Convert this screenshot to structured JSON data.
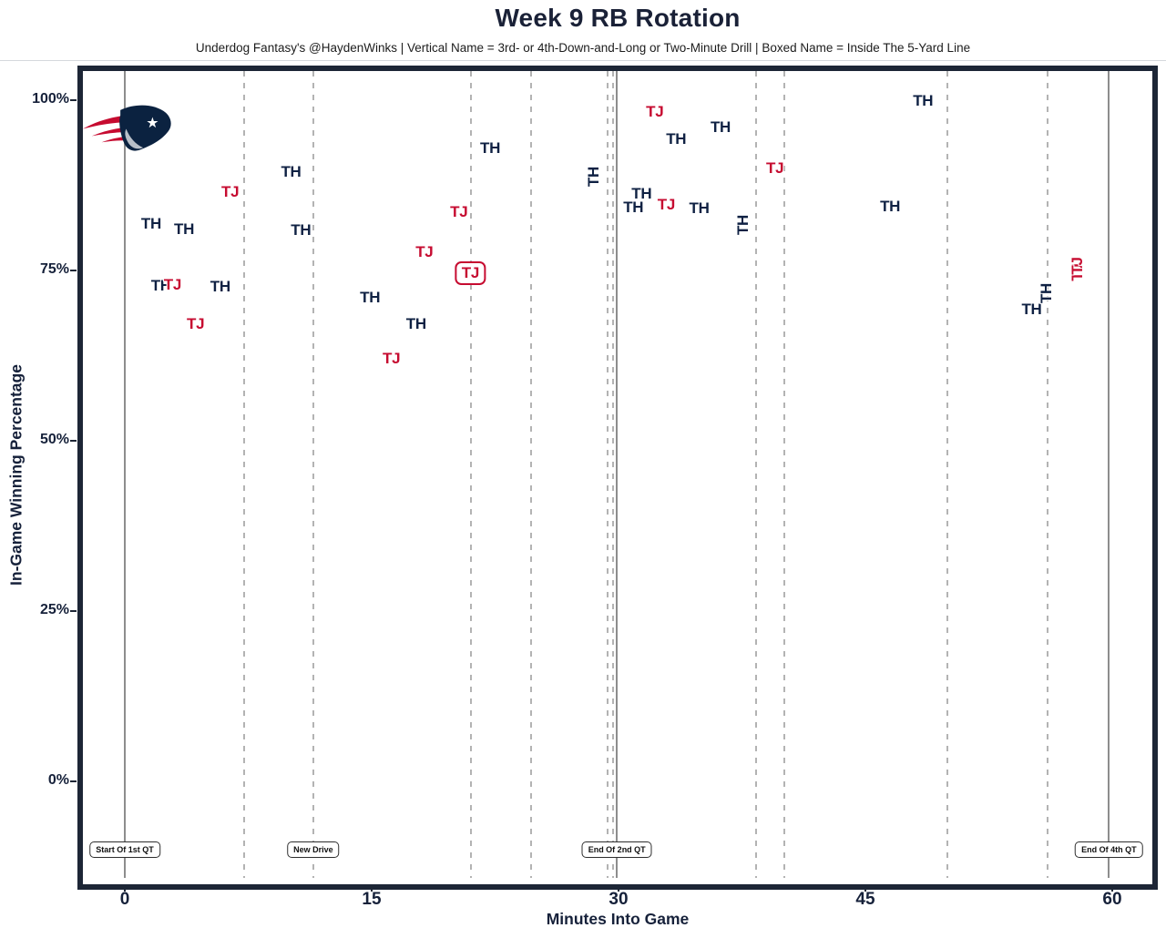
{
  "header": {
    "title": "Week 9 RB Rotation",
    "subtitle": "Underdog Fantasy's @HaydenWinks | Vertical Name = 3rd- or 4th-Down-and-Long or Two-Minute Drill | Boxed Name = Inside The 5-Yard Line"
  },
  "colors": {
    "navy": "#0f2143",
    "red": "#c60b30",
    "axis_text": "#16213a",
    "solid_event_line": "#8d8d8d",
    "dashed_event_line": "#b3b3b3",
    "plot_border": "#1d2636"
  },
  "logo": {
    "icon": "patriots-flying-elvis-logo"
  },
  "chart_data": {
    "type": "scatter",
    "title": "Week 9 RB Rotation",
    "subtitle": "Underdog Fantasy's @HaydenWinks | Vertical Name = 3rd- or 4th-Down-and-Long or Two-Minute Drill | Boxed Name = Inside The 5-Yard Line",
    "xlabel": "Minutes Into Game",
    "ylabel": "In-Game Winning Percentage",
    "xlim": [
      -2.6,
      62.4
    ],
    "ylim": [
      -14.2,
      104.3
    ],
    "grid": "vertical-event-lines-only",
    "legend_position": "none",
    "x_ticks": [
      {
        "value": 0,
        "label": "0"
      },
      {
        "value": 15,
        "label": "15"
      },
      {
        "value": 30,
        "label": "30"
      },
      {
        "value": 45,
        "label": "45"
      },
      {
        "value": 60,
        "label": "60"
      }
    ],
    "y_ticks": [
      {
        "value": 0,
        "label": "0%"
      },
      {
        "value": 25,
        "label": "25%"
      },
      {
        "value": 50,
        "label": "50%"
      },
      {
        "value": 75,
        "label": "75%"
      },
      {
        "value": 100,
        "label": "100%"
      }
    ],
    "series_legend": [
      {
        "key": "TH",
        "color": "#0f2143"
      },
      {
        "key": "TJ",
        "color": "#c60b30"
      }
    ],
    "points": [
      {
        "player": "TH",
        "minute": 1.6,
        "win_pct": 81.8,
        "vertical": false,
        "boxed": false
      },
      {
        "player": "TH",
        "minute": 3.6,
        "win_pct": 81.0,
        "vertical": false,
        "boxed": false
      },
      {
        "player": "TH",
        "minute": 2.2,
        "win_pct": 72.7,
        "vertical": false,
        "boxed": false
      },
      {
        "player": "TJ",
        "minute": 2.9,
        "win_pct": 72.9,
        "vertical": false,
        "boxed": false
      },
      {
        "player": "TJ",
        "minute": 4.3,
        "win_pct": 67.1,
        "vertical": false,
        "boxed": false
      },
      {
        "player": "TH",
        "minute": 5.8,
        "win_pct": 72.6,
        "vertical": false,
        "boxed": false
      },
      {
        "player": "TJ",
        "minute": 6.4,
        "win_pct": 86.5,
        "vertical": false,
        "boxed": false
      },
      {
        "player": "TH",
        "minute": 10.1,
        "win_pct": 89.4,
        "vertical": false,
        "boxed": false
      },
      {
        "player": "TH",
        "minute": 10.7,
        "win_pct": 80.9,
        "vertical": false,
        "boxed": false
      },
      {
        "player": "TH",
        "minute": 14.9,
        "win_pct": 71.0,
        "vertical": false,
        "boxed": false
      },
      {
        "player": "TJ",
        "minute": 16.2,
        "win_pct": 62.0,
        "vertical": false,
        "boxed": false
      },
      {
        "player": "TH",
        "minute": 17.7,
        "win_pct": 67.1,
        "vertical": false,
        "boxed": false
      },
      {
        "player": "TJ",
        "minute": 18.2,
        "win_pct": 77.7,
        "vertical": false,
        "boxed": false
      },
      {
        "player": "TJ",
        "minute": 20.3,
        "win_pct": 83.6,
        "vertical": false,
        "boxed": false
      },
      {
        "player": "TJ",
        "minute": 21.0,
        "win_pct": 74.6,
        "vertical": false,
        "boxed": true
      },
      {
        "player": "TH",
        "minute": 22.2,
        "win_pct": 92.9,
        "vertical": false,
        "boxed": false
      },
      {
        "player": "TH",
        "minute": 28.5,
        "win_pct": 88.8,
        "vertical": true,
        "boxed": false
      },
      {
        "player": "TH",
        "minute": 30.9,
        "win_pct": 84.2,
        "vertical": false,
        "boxed": false
      },
      {
        "player": "TH",
        "minute": 31.4,
        "win_pct": 86.2,
        "vertical": false,
        "boxed": false
      },
      {
        "player": "TJ",
        "minute": 32.2,
        "win_pct": 98.3,
        "vertical": false,
        "boxed": false
      },
      {
        "player": "TJ",
        "minute": 32.9,
        "win_pct": 84.6,
        "vertical": false,
        "boxed": false
      },
      {
        "player": "TH",
        "minute": 33.5,
        "win_pct": 94.3,
        "vertical": false,
        "boxed": false
      },
      {
        "player": "TH",
        "minute": 34.9,
        "win_pct": 84.1,
        "vertical": false,
        "boxed": false
      },
      {
        "player": "TH",
        "minute": 36.2,
        "win_pct": 96.0,
        "vertical": false,
        "boxed": false
      },
      {
        "player": "TH",
        "minute": 37.6,
        "win_pct": 81.7,
        "vertical": true,
        "boxed": false
      },
      {
        "player": "TJ",
        "minute": 39.5,
        "win_pct": 90.0,
        "vertical": false,
        "boxed": false
      },
      {
        "player": "TH",
        "minute": 46.5,
        "win_pct": 84.4,
        "vertical": false,
        "boxed": false
      },
      {
        "player": "TH",
        "minute": 48.5,
        "win_pct": 99.9,
        "vertical": false,
        "boxed": false
      },
      {
        "player": "TH",
        "minute": 55.1,
        "win_pct": 69.3,
        "vertical": false,
        "boxed": false
      },
      {
        "player": "TH",
        "minute": 56.0,
        "win_pct": 71.7,
        "vertical": true,
        "boxed": false
      },
      {
        "player": "TJ",
        "minute": 57.9,
        "win_pct": 74.7,
        "vertical": true,
        "boxed": false
      },
      {
        "player": "TJ",
        "minute": 57.9,
        "win_pct": 75.7,
        "vertical": true,
        "boxed": false
      }
    ],
    "event_lines": [
      {
        "minute": 0.0,
        "style": "solid"
      },
      {
        "minute": 7.25,
        "style": "dashed"
      },
      {
        "minute": 11.45,
        "style": "dashed"
      },
      {
        "minute": 21.05,
        "style": "dashed"
      },
      {
        "minute": 24.7,
        "style": "dashed"
      },
      {
        "minute": 29.35,
        "style": "dashed"
      },
      {
        "minute": 29.65,
        "style": "dashed"
      },
      {
        "minute": 29.9,
        "style": "solid"
      },
      {
        "minute": 38.35,
        "style": "dashed"
      },
      {
        "minute": 40.1,
        "style": "dashed"
      },
      {
        "minute": 50.0,
        "style": "dashed"
      },
      {
        "minute": 56.05,
        "style": "dashed"
      },
      {
        "minute": 59.8,
        "style": "solid"
      }
    ],
    "annotations": [
      {
        "label": "Start Of 1st QT",
        "minute": 0.0,
        "win_pct": -10
      },
      {
        "label": "New Drive",
        "minute": 11.45,
        "win_pct": -10
      },
      {
        "label": "End Of 2nd QT",
        "minute": 29.9,
        "win_pct": -10
      },
      {
        "label": "End Of 4th QT",
        "minute": 59.8,
        "win_pct": -10
      }
    ]
  }
}
